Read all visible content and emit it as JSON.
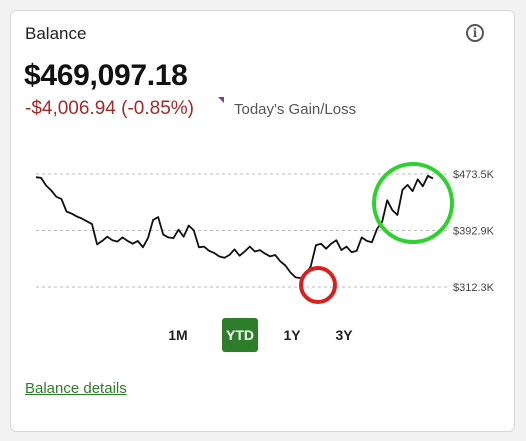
{
  "card": {
    "title": "Balance",
    "balance": "$469,097.18",
    "change": "-$4,006.94 (-0.85%)",
    "change_label": "Today's Gain/Loss",
    "details_link": "Balance details"
  },
  "tabs": [
    {
      "label": "1M",
      "active": false
    },
    {
      "label": "YTD",
      "active": true
    },
    {
      "label": "1Y",
      "active": false
    },
    {
      "label": "3Y",
      "active": false
    }
  ],
  "colors": {
    "line": "#111111",
    "accent": "#2e7d2a",
    "loss": "#a32a2a",
    "grid": "#bbbbbb",
    "annotation_low": "#d92020",
    "annotation_high": "#2fd12f"
  },
  "chart_data": {
    "type": "line",
    "ylim": [
      312.3,
      473.5
    ],
    "yticks": [
      "$473.5K",
      "$392.9K",
      "$312.3K"
    ],
    "ytick_values": [
      473.5,
      392.9,
      312.3
    ],
    "series": [
      {
        "values": [
          469,
          468,
          457,
          450,
          441,
          438,
          420,
          417,
          413,
          410,
          406,
          402,
          373,
          378,
          384,
          379,
          377,
          383,
          378,
          374,
          378,
          369,
          382,
          408,
          412,
          387,
          383,
          382,
          394,
          384,
          400,
          393,
          369,
          370,
          364,
          361,
          356,
          354,
          358,
          366,
          357,
          363,
          370,
          363,
          365,
          360,
          356,
          358,
          349,
          343,
          333,
          326,
          325,
          330,
          342,
          372,
          374,
          367,
          374,
          379,
          365,
          370,
          362,
          364,
          383,
          378,
          376,
          395,
          405,
          436,
          422,
          415,
          451,
          458,
          449,
          466,
          456,
          471,
          467
        ]
      }
    ],
    "annotations": [
      {
        "shape": "circle",
        "color": "red",
        "near": "low point"
      },
      {
        "shape": "circle",
        "color": "green",
        "near": "recent high"
      }
    ]
  }
}
